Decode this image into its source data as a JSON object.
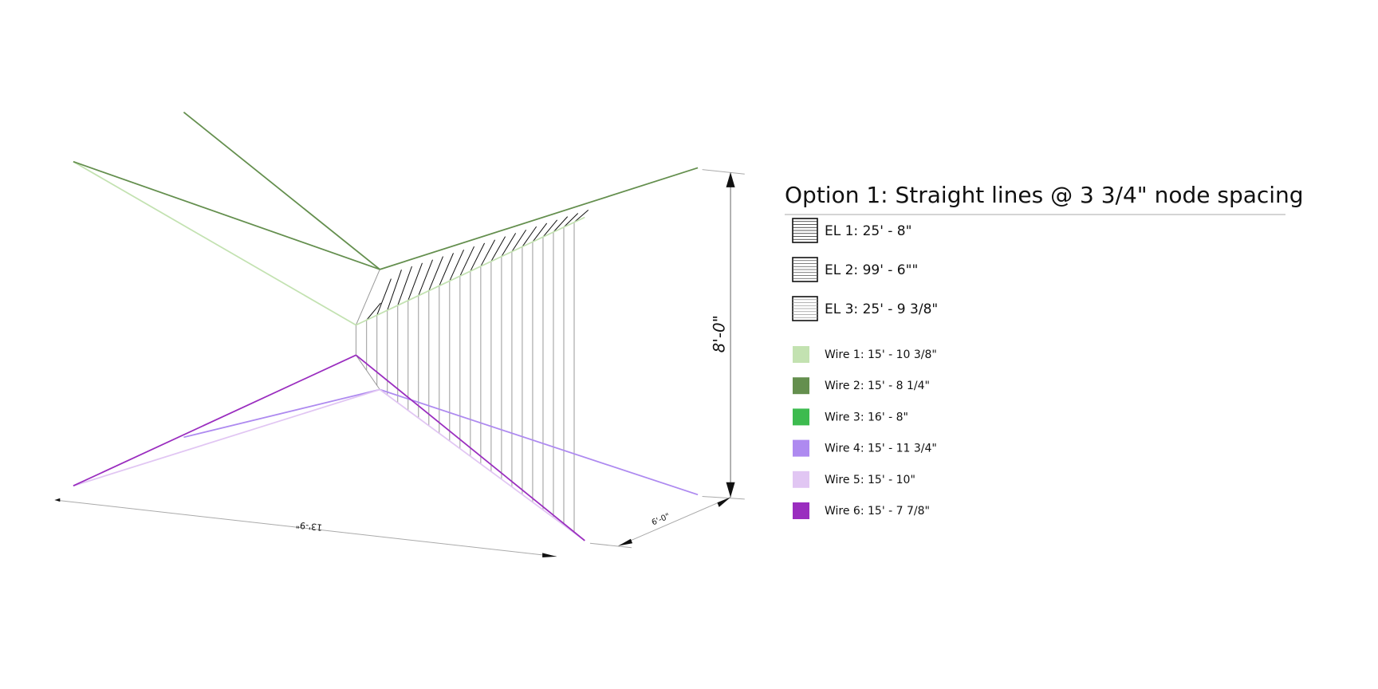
{
  "title": "Option 1:  Straight lines @ 3 3/4\" node spacing",
  "dimensions": {
    "height": "8'-0\"",
    "length": "13'-9\"",
    "depth": "6'-0\""
  },
  "legend": {
    "elements": [
      {
        "label": "EL 1:  25' - 8\""
      },
      {
        "label": "EL 2:  99' - 6\"\""
      },
      {
        "label": "EL 3:  25' - 9 3/8\""
      }
    ],
    "wires": [
      {
        "label": "Wire 1:  15' - 10 3/8\"",
        "color": "#c3e2b1"
      },
      {
        "label": "Wire 2:  15' - 8 1/4\"",
        "color": "#648f4e"
      },
      {
        "label": "Wire 3:  16' -  8\"",
        "color": "#3dbb4f"
      },
      {
        "label": "Wire 4:  15' - 11 3/4\"",
        "color": "#ae8af0"
      },
      {
        "label": "Wire 5:  15' - 10\"",
        "color": "#e1c6f3"
      },
      {
        "label": "Wire 6:  15' - 7 7/8\"",
        "color": "#9a2dbf"
      }
    ]
  }
}
